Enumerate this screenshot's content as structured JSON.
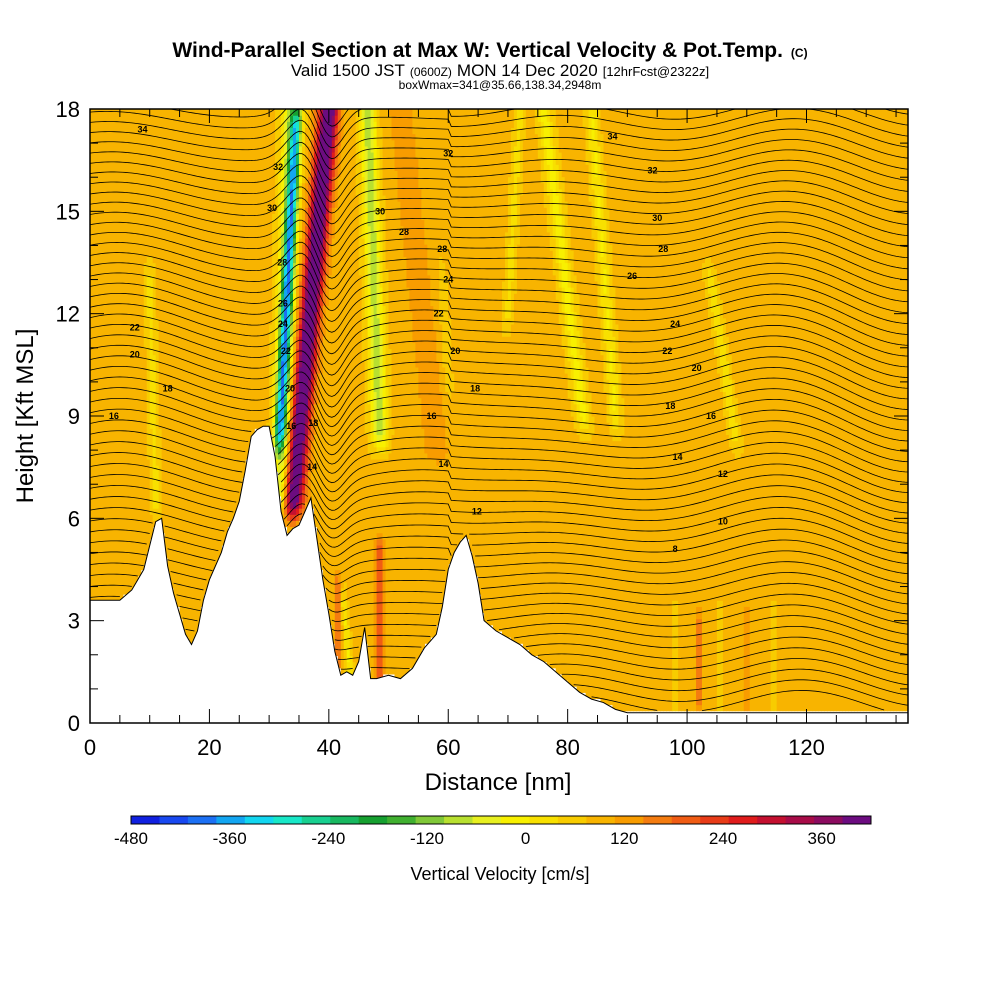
{
  "chart_data": {
    "type": "heatmap",
    "title": "Wind-Parallel Section at Max W: Vertical Velocity & Pot.Temp.",
    "title_mark": "(C)",
    "subtitle_parts": [
      "Valid 1500 JST",
      "(0600Z)",
      "MON 14 Dec 2020",
      "[12hrFcst@2322z]"
    ],
    "subsubtitle": "boxWmax=341@35.66,138.34,2948m",
    "xlabel": "Distance [nm]",
    "ylabel": "Height [Kft MSL]",
    "xlim": [
      0,
      137
    ],
    "ylim": [
      0,
      18
    ],
    "x_ticks": [
      0,
      20,
      40,
      60,
      80,
      100,
      120
    ],
    "y_ticks": [
      0,
      3,
      6,
      9,
      12,
      15,
      18
    ],
    "x_tick_labels": [
      "0",
      "20",
      "40",
      "60",
      "80",
      "100",
      "120"
    ],
    "y_tick_labels": [
      "0",
      "3",
      "6",
      "9",
      "12",
      "15",
      "18"
    ],
    "colorbar": {
      "label": "Vertical Velocity [cm/s]",
      "min": -480,
      "max": 420,
      "step": 30,
      "tick_values": [
        -480,
        -360,
        -240,
        -120,
        0,
        120,
        240,
        360
      ],
      "tick_labels": [
        "-480",
        "-360",
        "-240",
        "-120",
        "0",
        "120",
        "240",
        "360"
      ],
      "colors": [
        "#1020e0",
        "#1848f0",
        "#1c70f4",
        "#12a6f2",
        "#12d6f0",
        "#18e8c8",
        "#18d090",
        "#18b860",
        "#16a030",
        "#40b030",
        "#80c838",
        "#b8e030",
        "#e8f020",
        "#f8f000",
        "#f8e000",
        "#f8cc00",
        "#f8b400",
        "#f89c00",
        "#f47c10",
        "#f05c14",
        "#e83c18",
        "#e01c1c",
        "#c41030",
        "#a80c48",
        "#8c0c60",
        "#6c0c80"
      ]
    },
    "terrain_profile": {
      "x": [
        0,
        3,
        5,
        7,
        9,
        10,
        11,
        12,
        13,
        14,
        15,
        16,
        17,
        18,
        19,
        20,
        21,
        22,
        23,
        24,
        25,
        26,
        27,
        28,
        29,
        30,
        31,
        32,
        33,
        34,
        35,
        36,
        37,
        38,
        39,
        40,
        41,
        42,
        43,
        44,
        45,
        46,
        47,
        48,
        50,
        52,
        54,
        56,
        58,
        59,
        60,
        61,
        62,
        63,
        64,
        65,
        66,
        68,
        70,
        72,
        74,
        76,
        78,
        80,
        82,
        84,
        86,
        88,
        90,
        95,
        100,
        110,
        120,
        137
      ],
      "height": [
        3.6,
        3.6,
        3.6,
        3.9,
        4.5,
        5.2,
        5.9,
        6.0,
        4.6,
        3.8,
        3.2,
        2.6,
        2.3,
        2.7,
        3.6,
        4.2,
        4.6,
        5.0,
        5.6,
        6.0,
        6.5,
        7.4,
        8.4,
        8.6,
        8.7,
        8.7,
        7.8,
        6.2,
        5.5,
        5.7,
        5.8,
        6.2,
        6.6,
        5.4,
        4.2,
        3.2,
        2.1,
        1.4,
        1.5,
        1.4,
        1.8,
        2.8,
        1.3,
        1.3,
        1.4,
        1.3,
        1.6,
        2.2,
        2.6,
        3.4,
        4.5,
        5.0,
        5.3,
        5.5,
        4.9,
        4.1,
        3.0,
        2.7,
        2.5,
        2.3,
        2.0,
        1.8,
        1.5,
        1.2,
        0.9,
        0.7,
        0.6,
        0.4,
        0.3,
        0.3,
        0.3,
        0.3,
        0.3,
        0.3
      ]
    },
    "w_features": [
      {
        "name": "updraft",
        "x0": 40.0,
        "x1": 34.0,
        "y0": 18,
        "y1": 6.5,
        "width": 4.2,
        "peak": 341
      },
      {
        "name": "downdraft-core",
        "x0": 34.5,
        "x1": 31.8,
        "y0": 17.5,
        "y1": 8.5,
        "width": 2.2,
        "peak": -270
      },
      {
        "name": "downdraft-wide",
        "x0": 33.8,
        "x1": 32.0,
        "y0": 18,
        "y1": 6.5,
        "width": 3.8,
        "peak": -150
      },
      {
        "name": "downdraft-band",
        "x0": 46.5,
        "x1": 48.5,
        "y0": 18,
        "y1": 8.5,
        "width": 3.4,
        "peak": -145
      },
      {
        "name": "band-2",
        "x0": 76.0,
        "x1": 82.5,
        "y0": 18,
        "y1": 9.0,
        "width": 3.0,
        "peak": -80
      },
      {
        "name": "band-3",
        "x0": 84.0,
        "x1": 88.0,
        "y0": 18,
        "y1": 9.0,
        "width": 2.5,
        "peak": -70
      },
      {
        "name": "band-4",
        "x0": 104.0,
        "x1": 108.0,
        "y0": 13,
        "y1": 8.5,
        "width": 2.2,
        "peak": -60
      },
      {
        "name": "band-5",
        "x0": 72.0,
        "x1": 70.0,
        "y0": 18,
        "y1": 12.0,
        "width": 2.0,
        "peak": -50
      },
      {
        "name": "band-6",
        "x0": 59.0,
        "x1": 60.0,
        "y0": 13,
        "y1": 10.0,
        "width": 1.8,
        "peak": -40
      },
      {
        "name": "band-7",
        "x0": 10.0,
        "x1": 11.0,
        "y0": 13,
        "y1": 6.5,
        "width": 2.0,
        "peak": -50
      },
      {
        "name": "lee-positive",
        "x0": 52.0,
        "x1": 58.0,
        "y0": 18,
        "y1": 8.0,
        "width": 6.0,
        "peak": 40
      },
      {
        "name": "low-positive",
        "x0": 48.5,
        "x1": 48.5,
        "y0": 5.0,
        "y1": 1.5,
        "width": 1.8,
        "peak": 120
      },
      {
        "name": "low-positive-2",
        "x0": 41.5,
        "x1": 41.5,
        "y0": 4.0,
        "y1": 1.5,
        "width": 1.5,
        "peak": 90
      },
      {
        "name": "low-negative",
        "x0": 42.5,
        "x1": 43.5,
        "y0": 3.5,
        "y1": 1.5,
        "width": 1.5,
        "peak": -70
      },
      {
        "name": "valley-neg-1",
        "x0": 98.0,
        "x1": 98.0,
        "y0": 3.0,
        "y1": 1.0,
        "width": 1.0,
        "peak": -50
      },
      {
        "name": "valley-neg-2",
        "x0": 105.5,
        "x1": 105.5,
        "y0": 3.0,
        "y1": 1.0,
        "width": 1.0,
        "peak": -45
      },
      {
        "name": "valley-neg-3",
        "x0": 114.5,
        "x1": 114.5,
        "y0": 3.0,
        "y1": 1.0,
        "width": 1.0,
        "peak": -40
      },
      {
        "name": "valley-pos-1",
        "x0": 102.0,
        "x1": 102.0,
        "y0": 3.0,
        "y1": 0.5,
        "width": 1.2,
        "peak": 70
      },
      {
        "name": "valley-pos-2",
        "x0": 110.0,
        "x1": 110.0,
        "y0": 3.0,
        "y1": 0.5,
        "width": 1.2,
        "peak": 60
      }
    ],
    "theta_levels": [
      8,
      10,
      12,
      14,
      16,
      18,
      20,
      22,
      24,
      26,
      28,
      30,
      32,
      34
    ],
    "contour_labels": [
      {
        "text": "34",
        "x": 8.8,
        "y": 17.4
      },
      {
        "text": "32",
        "x": 60.0,
        "y": 16.7
      },
      {
        "text": "34",
        "x": 87.5,
        "y": 17.2
      },
      {
        "text": "32",
        "x": 94.2,
        "y": 16.2
      },
      {
        "text": "30",
        "x": 48.6,
        "y": 15.0
      },
      {
        "text": "30",
        "x": 95.0,
        "y": 14.8
      },
      {
        "text": "28",
        "x": 52.6,
        "y": 14.4
      },
      {
        "text": "28",
        "x": 59.0,
        "y": 13.9
      },
      {
        "text": "28",
        "x": 96.0,
        "y": 13.9
      },
      {
        "text": "24",
        "x": 60.0,
        "y": 13.0
      },
      {
        "text": "26",
        "x": 90.8,
        "y": 13.1
      },
      {
        "text": "22",
        "x": 58.4,
        "y": 12.0
      },
      {
        "text": "24",
        "x": 98.0,
        "y": 11.7
      },
      {
        "text": "22",
        "x": 7.5,
        "y": 11.6
      },
      {
        "text": "20",
        "x": 61.2,
        "y": 10.9
      },
      {
        "text": "22",
        "x": 96.7,
        "y": 10.9
      },
      {
        "text": "20",
        "x": 7.5,
        "y": 10.8
      },
      {
        "text": "20",
        "x": 101.6,
        "y": 10.4
      },
      {
        "text": "18",
        "x": 13.0,
        "y": 9.8
      },
      {
        "text": "18",
        "x": 64.5,
        "y": 9.8
      },
      {
        "text": "18",
        "x": 97.2,
        "y": 9.3
      },
      {
        "text": "16",
        "x": 4.0,
        "y": 9.0
      },
      {
        "text": "16",
        "x": 57.2,
        "y": 9.0
      },
      {
        "text": "16",
        "x": 104.0,
        "y": 9.0
      },
      {
        "text": "14",
        "x": 59.2,
        "y": 7.6
      },
      {
        "text": "14",
        "x": 98.4,
        "y": 7.8
      },
      {
        "text": "12",
        "x": 106.0,
        "y": 7.3
      },
      {
        "text": "12",
        "x": 64.8,
        "y": 6.2
      },
      {
        "text": "10",
        "x": 106.0,
        "y": 5.9
      },
      {
        "text": "8",
        "x": 98.0,
        "y": 5.1
      },
      {
        "text": "32",
        "x": 31.5,
        "y": 16.3
      },
      {
        "text": "30",
        "x": 30.5,
        "y": 15.1
      },
      {
        "text": "28",
        "x": 32.2,
        "y": 13.5
      },
      {
        "text": "26",
        "x": 32.3,
        "y": 12.3
      },
      {
        "text": "24",
        "x": 32.3,
        "y": 11.7
      },
      {
        "text": "22",
        "x": 32.8,
        "y": 10.9
      },
      {
        "text": "20",
        "x": 33.5,
        "y": 9.8
      },
      {
        "text": "18",
        "x": 37.4,
        "y": 8.8
      },
      {
        "text": "16",
        "x": 33.7,
        "y": 8.7
      },
      {
        "text": "14",
        "x": 37.2,
        "y": 7.5
      }
    ]
  }
}
